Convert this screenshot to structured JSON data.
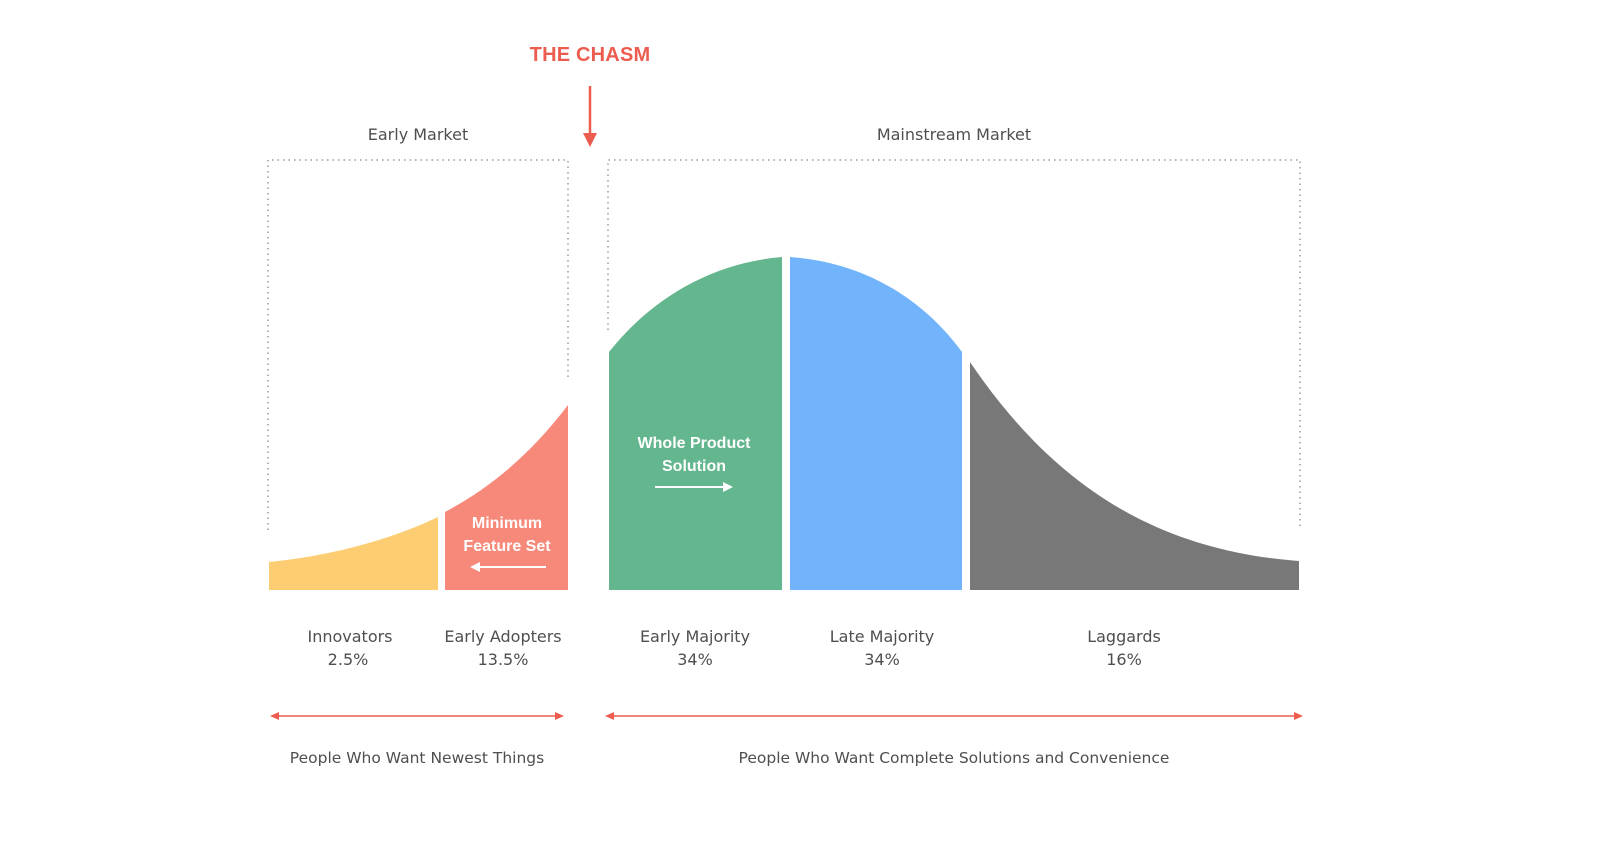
{
  "chasm": {
    "title": "THE CHASM"
  },
  "markets": {
    "early": {
      "label": "Early Market"
    },
    "mainstream": {
      "label": "Mainstream Market"
    }
  },
  "segments": [
    {
      "name": "Innovators",
      "percent": "2.5%",
      "color": "#fdcd73"
    },
    {
      "name": "Early Adopters",
      "percent": "13.5%",
      "color": "#f7897a"
    },
    {
      "name": "Early Majority",
      "percent": "34%",
      "color": "#64b68e"
    },
    {
      "name": "Late Majority",
      "percent": "34%",
      "color": "#72b4fb"
    },
    {
      "name": "Laggards",
      "percent": "16%",
      "color": "#797879"
    }
  ],
  "annotations": {
    "minimum_feature_set": {
      "line1": "Minimum",
      "line2": "Feature Set"
    },
    "whole_product_solution": {
      "line1": "Whole Product",
      "line2": "Solution"
    }
  },
  "groups": {
    "left": {
      "label": "People Who Want Newest Things"
    },
    "right": {
      "label": "People Who Want Complete Solutions and Convenience"
    }
  },
  "colors": {
    "accent": "#ec5d4f",
    "text": "#4f4f4f",
    "dotted": "#9a9a9a"
  }
}
